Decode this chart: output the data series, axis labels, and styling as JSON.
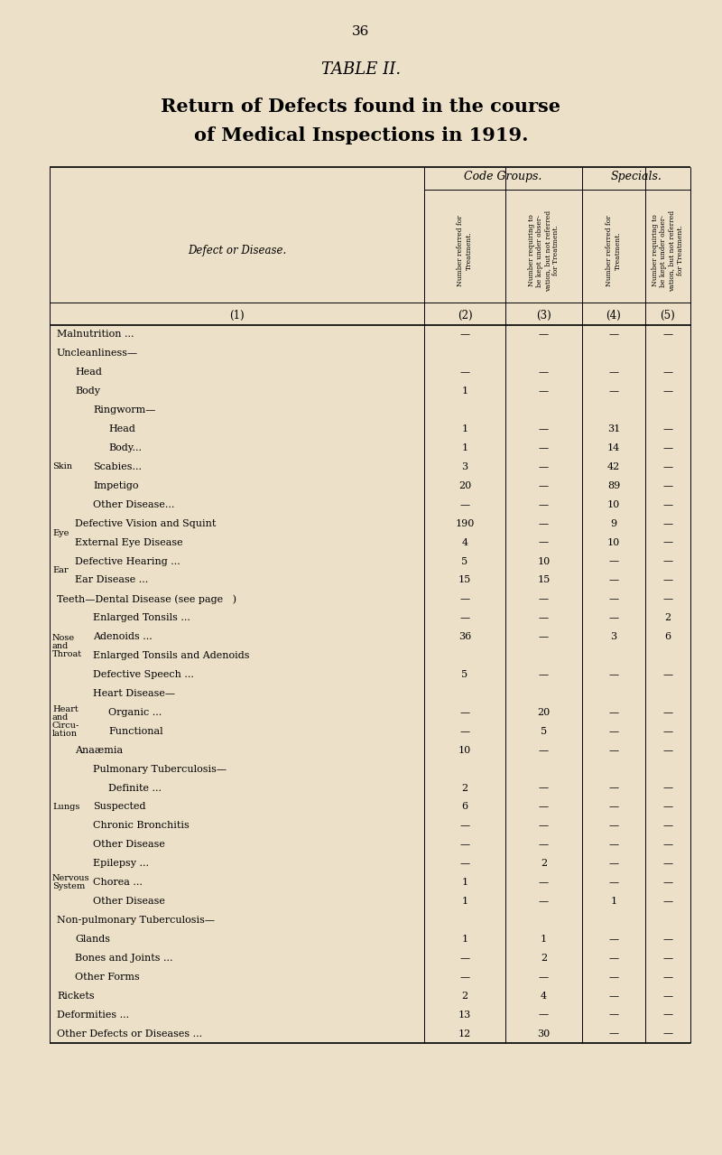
{
  "page_number": "36",
  "table_title": "TABLE II.",
  "subtitle_line1": "Return of Defects found in the course",
  "subtitle_line2": "of Medical Inspections in 1919.",
  "bg_color": "#ede0c8",
  "col2_header": "Number referred for\nTreatment.",
  "col3_header": "Number requiring to\nbe kept under obser-\nvation, but not referred\nfor Treatment.",
  "col4_header": "Number referred for\nTreatment.",
  "col5_header": "Number requiring to\nbe kept under obser-\nvation, but not referred\nfor Treatment.",
  "rows": [
    {
      "label": "Malnutrition ...",
      "indent": 0,
      "side": "",
      "c2": "—",
      "c3": "—",
      "c4": "—",
      "c5": "—"
    },
    {
      "label": "Uncleanliness—",
      "indent": 0,
      "side": "",
      "c2": "",
      "c3": "",
      "c4": "",
      "c5": ""
    },
    {
      "label": "Head",
      "indent": 1,
      "side": "",
      "c2": "—",
      "c3": "—",
      "c4": "—",
      "c5": "—"
    },
    {
      "label": "Body",
      "indent": 1,
      "side": "",
      "c2": "1",
      "c3": "—",
      "c4": "—",
      "c5": "—"
    },
    {
      "label": "Ringworm—",
      "indent": 2,
      "side": "",
      "c2": "",
      "c3": "",
      "c4": "",
      "c5": ""
    },
    {
      "label": "Head",
      "indent": 3,
      "side": "",
      "c2": "1",
      "c3": "—",
      "c4": "31",
      "c5": "—"
    },
    {
      "label": "Body...",
      "indent": 3,
      "side": "",
      "c2": "1",
      "c3": "—",
      "c4": "14",
      "c5": "—"
    },
    {
      "label": "Scabies...",
      "indent": 2,
      "side": "Skin",
      "c2": "3",
      "c3": "—",
      "c4": "42",
      "c5": "—"
    },
    {
      "label": "Impetigo",
      "indent": 2,
      "side": "",
      "c2": "20",
      "c3": "—",
      "c4": "89",
      "c5": "—"
    },
    {
      "label": "Other Disease...",
      "indent": 2,
      "side": "",
      "c2": "—",
      "c3": "—",
      "c4": "10",
      "c5": "—"
    },
    {
      "label": "Defective Vision and Squint",
      "indent": 1,
      "side": "",
      "c2": "190",
      "c3": "—",
      "c4": "9",
      "c5": "—"
    },
    {
      "label": "External Eye Disease",
      "indent": 1,
      "side": "Eye",
      "c2": "4",
      "c3": "—",
      "c4": "10",
      "c5": "—"
    },
    {
      "label": "Defective Hearing ...",
      "indent": 1,
      "side": "",
      "c2": "5",
      "c3": "10",
      "c4": "—",
      "c5": "—"
    },
    {
      "label": "Ear Disease ...",
      "indent": 1,
      "side": "Ear",
      "c2": "15",
      "c3": "15",
      "c4": "—",
      "c5": "—"
    },
    {
      "label": "Teeth—Dental Disease (see page   )",
      "indent": 0,
      "side": "",
      "c2": "—",
      "c3": "—",
      "c4": "—",
      "c5": "—"
    },
    {
      "label": "Enlarged Tonsils ...",
      "indent": 2,
      "side": "",
      "c2": "—",
      "c3": "—",
      "c4": "—",
      "c5": "2"
    },
    {
      "label": "Adenoids ...",
      "indent": 2,
      "side": "",
      "c2": "36",
      "c3": "—",
      "c4": "3",
      "c5": "6"
    },
    {
      "label": "Enlarged Tonsils and Adenoids",
      "indent": 2,
      "side": "",
      "c2": "",
      "c3": "",
      "c4": "",
      "c5": ""
    },
    {
      "label": "Defective Speech ...",
      "indent": 2,
      "side": "",
      "c2": "5",
      "c3": "—",
      "c4": "—",
      "c5": "—"
    },
    {
      "label": "Heart Disease—",
      "indent": 2,
      "side": "",
      "c2": "",
      "c3": "",
      "c4": "",
      "c5": ""
    },
    {
      "label": "Organic ...",
      "indent": 3,
      "side": "",
      "c2": "—",
      "c3": "20",
      "c4": "—",
      "c5": "—"
    },
    {
      "label": "Functional",
      "indent": 3,
      "side": "",
      "c2": "—",
      "c3": "5",
      "c4": "—",
      "c5": "—"
    },
    {
      "label": "Anaæmia",
      "indent": 1,
      "side": "",
      "c2": "10",
      "c3": "—",
      "c4": "—",
      "c5": "—"
    },
    {
      "label": "Pulmonary Tuberculosis—",
      "indent": 2,
      "side": "",
      "c2": "",
      "c3": "",
      "c4": "",
      "c5": ""
    },
    {
      "label": "Definite ...",
      "indent": 3,
      "side": "",
      "c2": "2",
      "c3": "—",
      "c4": "—",
      "c5": "—"
    },
    {
      "label": "Suspected",
      "indent": 2,
      "side": "",
      "c2": "6",
      "c3": "—",
      "c4": "—",
      "c5": "—"
    },
    {
      "label": "Chronic Bronchitis",
      "indent": 2,
      "side": "",
      "c2": "—",
      "c3": "—",
      "c4": "—",
      "c5": "—"
    },
    {
      "label": "Other Disease",
      "indent": 2,
      "side": "",
      "c2": "—",
      "c3": "—",
      "c4": "—",
      "c5": "—"
    },
    {
      "label": "Epilepsy ...",
      "indent": 2,
      "side": "",
      "c2": "—",
      "c3": "2",
      "c4": "—",
      "c5": "—"
    },
    {
      "label": "Chorea ...",
      "indent": 2,
      "side": "",
      "c2": "1",
      "c3": "—",
      "c4": "—",
      "c5": "—"
    },
    {
      "label": "Other Disease",
      "indent": 2,
      "side": "",
      "c2": "1",
      "c3": "—",
      "c4": "1",
      "c5": "—"
    },
    {
      "label": "Non-pulmonary Tuberculosis—",
      "indent": 0,
      "side": "",
      "c2": "",
      "c3": "",
      "c4": "",
      "c5": ""
    },
    {
      "label": "Glands",
      "indent": 1,
      "side": "",
      "c2": "1",
      "c3": "1",
      "c4": "—",
      "c5": "—"
    },
    {
      "label": "Bones and Joints ...",
      "indent": 1,
      "side": "",
      "c2": "—",
      "c3": "2",
      "c4": "—",
      "c5": "—"
    },
    {
      "label": "Other Forms",
      "indent": 1,
      "side": "",
      "c2": "—",
      "c3": "—",
      "c4": "—",
      "c5": "—"
    },
    {
      "label": "Rickets",
      "indent": 0,
      "side": "",
      "c2": "2",
      "c3": "4",
      "c4": "—",
      "c5": "—"
    },
    {
      "label": "Deformities ...",
      "indent": 0,
      "side": "",
      "c2": "13",
      "c3": "—",
      "c4": "—",
      "c5": "—"
    },
    {
      "label": "Other Defects or Diseases ...",
      "indent": 0,
      "side": "",
      "c2": "12",
      "c3": "30",
      "c4": "—",
      "c5": "—"
    }
  ],
  "side_groups": [
    {
      "label": "Skin",
      "rows": [
        5,
        6,
        7,
        8,
        9
      ]
    },
    {
      "label": "Eye",
      "rows": [
        10,
        11
      ]
    },
    {
      "label": "Ear",
      "rows": [
        12,
        13
      ]
    },
    {
      "label": "Nose\nand\nThroat",
      "rows": [
        15,
        16,
        17,
        18
      ]
    },
    {
      "label": "Heart\nand\nCircu-\nlation",
      "rows": [
        19,
        20,
        21,
        22
      ]
    },
    {
      "label": "Lungs",
      "rows": [
        23,
        24,
        25,
        26,
        27
      ]
    },
    {
      "label": "Nervous\nSystem",
      "rows": [
        28,
        29,
        30
      ]
    }
  ]
}
